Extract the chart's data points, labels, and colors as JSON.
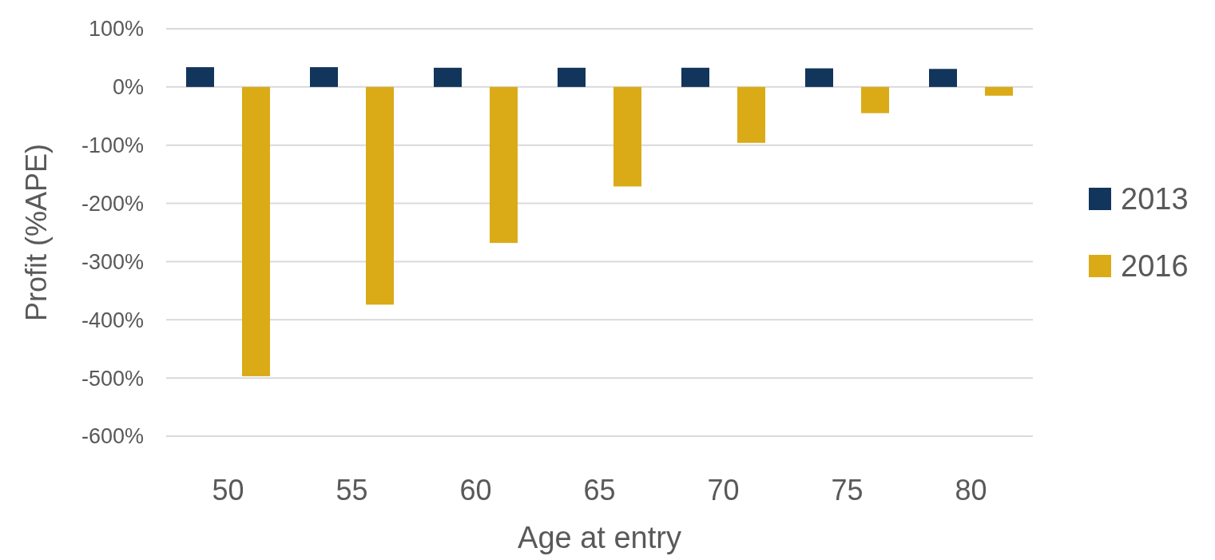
{
  "chart_data": {
    "type": "bar",
    "xlabel": "Age at entry",
    "ylabel": "Profit (%APE)",
    "categories": [
      "50",
      "55",
      "60",
      "65",
      "70",
      "75",
      "80"
    ],
    "series": [
      {
        "name": "2013",
        "color": "#12355b",
        "values": [
          34,
          34,
          33,
          33,
          33,
          32,
          31
        ]
      },
      {
        "name": "2016",
        "color": "#daab17",
        "values": [
          -497,
          -374,
          -268,
          -171,
          -96,
          -45,
          -15
        ]
      }
    ],
    "ylim": [
      -600,
      100
    ],
    "yticks": [
      {
        "value": 100,
        "label": "100%"
      },
      {
        "value": 0,
        "label": "0%"
      },
      {
        "value": -100,
        "label": "-100%"
      },
      {
        "value": -200,
        "label": "-200%"
      },
      {
        "value": -300,
        "label": "-300%"
      },
      {
        "value": -400,
        "label": "-400%"
      },
      {
        "value": -500,
        "label": "-500%"
      },
      {
        "value": -600,
        "label": "-600%"
      }
    ],
    "grid": "y",
    "legend": "right"
  }
}
